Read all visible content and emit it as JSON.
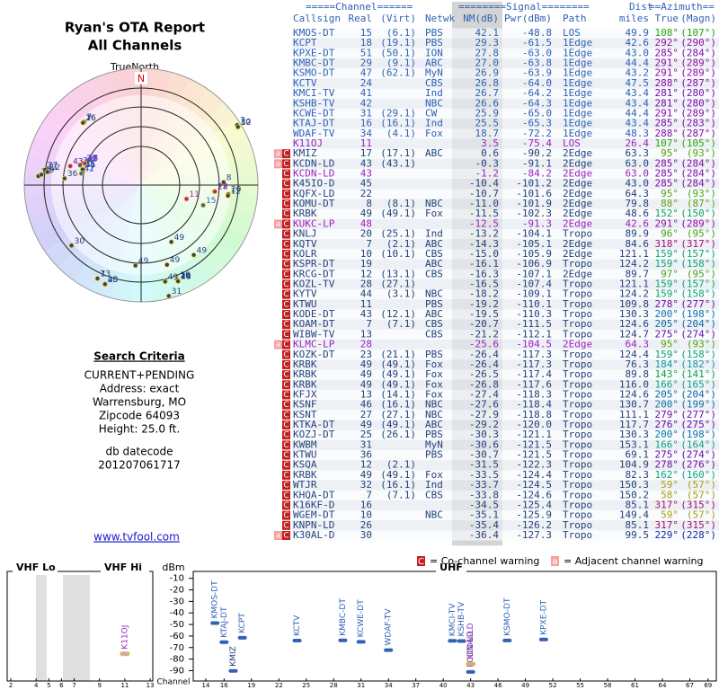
{
  "header": {
    "title": "Ryan's OTA Report",
    "subtitle": "All Channels"
  },
  "polar": {
    "north_label": "TrueNorth",
    "n": "N"
  },
  "table": {
    "group_headers": [
      "=====Channel======",
      "========Signal========",
      "Dist",
      "==Azimuth=="
    ],
    "columns": [
      "Callsign",
      "Real",
      "(Virt)",
      "Netwk",
      "NM(dB)",
      "Pwr(dBm)",
      "Path",
      "miles",
      "True",
      "(Magn)"
    ],
    "rows": [
      [
        "KMOS-DT",
        "15",
        "(6.1)",
        "PBS",
        "42.1",
        "-48.8",
        "LOS",
        "49.9",
        "108°",
        "(107°)"
      ],
      [
        "KCPT",
        "18",
        "(19.1)",
        "PBS",
        "29.3",
        "-61.5",
        "1Edge",
        "42.6",
        "292°",
        "(290°)"
      ],
      [
        "KPXE-DT",
        "51",
        "(50.1)",
        "ION",
        "27.8",
        "-63.0",
        "1Edge",
        "43.0",
        "285°",
        "(284°)"
      ],
      [
        "KMBC-DT",
        "29",
        "(9.1)",
        "ABC",
        "27.0",
        "-63.8",
        "1Edge",
        "44.4",
        "291°",
        "(289°)"
      ],
      [
        "KSMO-DT",
        "47",
        "(62.1)",
        "MyN",
        "26.9",
        "-63.9",
        "1Edge",
        "43.2",
        "291°",
        "(289°)"
      ],
      [
        "KCTV",
        "24",
        null,
        "CBS",
        "26.8",
        "-64.0",
        "1Edge",
        "47.5",
        "288°",
        "(287°)"
      ],
      [
        "KMCI-TV",
        "41",
        null,
        "Ind",
        "26.7",
        "-64.2",
        "1Edge",
        "43.4",
        "281°",
        "(280°)"
      ],
      [
        "KSHB-TV",
        "42",
        null,
        "NBC",
        "26.6",
        "-64.3",
        "1Edge",
        "43.4",
        "281°",
        "(280°)"
      ],
      [
        "KCWE-DT",
        "31",
        "(29.1)",
        "CW",
        "25.9",
        "-65.0",
        "1Edge",
        "44.4",
        "291°",
        "(289°)"
      ],
      [
        "KTAJ-DT",
        "16",
        "(16.1)",
        "Ind",
        "25.5",
        "-65.3",
        "1Edge",
        "43.4",
        "285°",
        "(283°)"
      ],
      [
        "WDAF-TV",
        "34",
        "(4.1)",
        "Fox",
        "18.7",
        "-72.2",
        "1Edge",
        "48.3",
        "288°",
        "(287°)"
      ],
      [
        "K11OJ",
        "11",
        null,
        null,
        "3.5",
        "-75.4",
        "LOS",
        "26.4",
        "107°",
        "(105°)"
      ],
      [
        "KMIZ",
        "17",
        "(17.1)",
        "ABC",
        "0.6",
        "-90.2",
        "2Edge",
        "63.3",
        "95°",
        "(93°)"
      ],
      [
        "KCDN-LD",
        "43",
        "(43.1)",
        null,
        "-0.3",
        "-91.1",
        "2Edge",
        "63.0",
        "285°",
        "(284°)"
      ],
      [
        "KCDN-LD",
        "43",
        null,
        null,
        "-1.2",
        "-84.2",
        "2Edge",
        "63.0",
        "285°",
        "(284°)"
      ],
      [
        "K45IO-D",
        "45",
        null,
        null,
        "-10.4",
        "-101.2",
        "2Edge",
        "43.0",
        "285°",
        "(284°)"
      ],
      [
        "KQFX-LD",
        "22",
        null,
        null,
        "-10.7",
        "-101.6",
        "2Edge",
        "64.3",
        "95°",
        "(93°)"
      ],
      [
        "KOMU-DT",
        "8",
        "(8.1)",
        "NBC",
        "-11.0",
        "-101.9",
        "2Edge",
        "79.8",
        "88°",
        "(87°)"
      ],
      [
        "KRBK",
        "49",
        "(49.1)",
        "Fox",
        "-11.5",
        "-102.3",
        "2Edge",
        "48.6",
        "152°",
        "(150°)"
      ],
      [
        "KUKC-LP",
        "48",
        null,
        null,
        "-12.5",
        "-91.3",
        "2Edge",
        "42.6",
        "291°",
        "(289°)"
      ],
      [
        "KNLJ",
        "20",
        "(25.1)",
        "Ind",
        "-13.2",
        "-104.1",
        "Tropo",
        "89.9",
        "96°",
        "(95°)"
      ],
      [
        "KQTV",
        "7",
        "(2.1)",
        "ABC",
        "-14.3",
        "-105.1",
        "2Edge",
        "84.6",
        "318°",
        "(317°)"
      ],
      [
        "KOLR",
        "10",
        "(10.1)",
        "CBS",
        "-15.0",
        "-105.9",
        "2Edge",
        "121.1",
        "159°",
        "(157°)"
      ],
      [
        "KSPR-DT",
        "19",
        null,
        "ABC",
        "-16.1",
        "-106.9",
        "Tropo",
        "124.2",
        "159°",
        "(158°)"
      ],
      [
        "KRCG-DT",
        "12",
        "(13.1)",
        "CBS",
        "-16.3",
        "-107.1",
        "2Edge",
        "89.7",
        "97°",
        "(95°)"
      ],
      [
        "KOZL-TV",
        "28",
        "(27.1)",
        null,
        "-16.5",
        "-107.4",
        "Tropo",
        "121.1",
        "159°",
        "(157°)"
      ],
      [
        "KYTV",
        "44",
        "(3.1)",
        "NBC",
        "-18.2",
        "-109.1",
        "Tropo",
        "124.2",
        "159°",
        "(158°)"
      ],
      [
        "KTWU",
        "11",
        null,
        "PBS",
        "-19.2",
        "-110.1",
        "Tropo",
        "109.8",
        "278°",
        "(277°)"
      ],
      [
        "KODE-DT",
        "43",
        "(12.1)",
        "ABC",
        "-19.5",
        "-110.3",
        "Tropo",
        "130.3",
        "200°",
        "(198°)"
      ],
      [
        "KOAM-DT",
        "7",
        "(7.1)",
        "CBS",
        "-20.7",
        "-111.5",
        "Tropo",
        "124.6",
        "205°",
        "(204°)"
      ],
      [
        "WIBW-TV",
        "13",
        null,
        "CBS",
        "-21.2",
        "-112.1",
        "Tropo",
        "124.7",
        "275°",
        "(274°)"
      ],
      [
        "KLMC-LP",
        "28",
        null,
        null,
        "-25.6",
        "-104.5",
        "2Edge",
        "64.3",
        "95°",
        "(93°)"
      ],
      [
        "KOZK-DT",
        "23",
        "(21.1)",
        "PBS",
        "-26.4",
        "-117.3",
        "Tropo",
        "124.4",
        "159°",
        "(158°)"
      ],
      [
        "KRBK",
        "49",
        "(49.1)",
        "Fox",
        "-26.4",
        "-117.3",
        "Tropo",
        "76.3",
        "184°",
        "(182°)"
      ],
      [
        "KRBK",
        "49",
        "(49.1)",
        "Fox",
        "-26.5",
        "-117.4",
        "Tropo",
        "89.8",
        "143°",
        "(141°)"
      ],
      [
        "KRBK",
        "49",
        "(49.1)",
        "Fox",
        "-26.8",
        "-117.6",
        "Tropo",
        "116.0",
        "166°",
        "(165°)"
      ],
      [
        "KFJX",
        "13",
        "(14.1)",
        "Fox",
        "-27.4",
        "-118.3",
        "Tropo",
        "124.6",
        "205°",
        "(204°)"
      ],
      [
        "KSNF",
        "46",
        "(16.1)",
        "NBC",
        "-27.6",
        "-118.4",
        "Tropo",
        "130.7",
        "200°",
        "(199°)"
      ],
      [
        "KSNT",
        "27",
        "(27.1)",
        "NBC",
        "-27.9",
        "-118.8",
        "Tropo",
        "111.1",
        "279°",
        "(277°)"
      ],
      [
        "KTKA-DT",
        "49",
        "(49.1)",
        "ABC",
        "-29.2",
        "-120.0",
        "Tropo",
        "117.7",
        "276°",
        "(275°)"
      ],
      [
        "KOZJ-DT",
        "25",
        "(26.1)",
        "PBS",
        "-30.3",
        "-121.1",
        "Tropo",
        "130.3",
        "200°",
        "(198°)"
      ],
      [
        "KWBM",
        "31",
        null,
        "MyN",
        "-30.6",
        "-121.5",
        "Tropo",
        "153.1",
        "166°",
        "(164°)"
      ],
      [
        "KTWU",
        "36",
        null,
        "PBS",
        "-30.7",
        "-121.5",
        "Tropo",
        "69.1",
        "275°",
        "(274°)"
      ],
      [
        "KSQA",
        "12",
        "(2.1)",
        null,
        "-31.5",
        "-122.3",
        "Tropo",
        "104.9",
        "278°",
        "(276°)"
      ],
      [
        "KRBK",
        "49",
        "(49.1)",
        "Fox",
        "-33.5",
        "-124.4",
        "Tropo",
        "82.3",
        "162°",
        "(160°)"
      ],
      [
        "WTJR",
        "32",
        "(16.1)",
        "Ind",
        "-33.7",
        "-124.5",
        "Tropo",
        "150.3",
        "59°",
        "(57°)"
      ],
      [
        "KHQA-DT",
        "7",
        "(7.1)",
        "CBS",
        "-33.8",
        "-124.6",
        "Tropo",
        "150.2",
        "58°",
        "(57°)"
      ],
      [
        "K16KF-D",
        "16",
        null,
        null,
        "-34.5",
        "-125.4",
        "Tropo",
        "85.1",
        "317°",
        "(315°)"
      ],
      [
        "WGEM-DT",
        "10",
        null,
        "NBC",
        "-35.1",
        "-125.9",
        "Tropo",
        "149.4",
        "59°",
        "(57°)"
      ],
      [
        "KNPN-LD",
        "26",
        null,
        null,
        "-35.4",
        "-126.2",
        "Tropo",
        "85.1",
        "317°",
        "(315°)"
      ],
      [
        "K30AL-D",
        "30",
        null,
        null,
        "-36.4",
        "-127.3",
        "Tropo",
        "99.5",
        "229°",
        "(228°)"
      ]
    ],
    "warnings": [
      [],
      [],
      [],
      [],
      [],
      [],
      [],
      [],
      [],
      [],
      [],
      [],
      [
        "a",
        "C"
      ],
      [
        "a",
        "C"
      ],
      [
        "C"
      ],
      [
        "C"
      ],
      [
        "C"
      ],
      [
        "C"
      ],
      [
        "C"
      ],
      [
        "a",
        "C"
      ],
      [
        "C"
      ],
      [
        "C"
      ],
      [
        "C"
      ],
      [
        "C"
      ],
      [
        "C"
      ],
      [
        "C"
      ],
      [
        "C"
      ],
      [
        "C"
      ],
      [
        "C"
      ],
      [
        "C"
      ],
      [
        "C"
      ],
      [
        "a",
        "C"
      ],
      [
        "C"
      ],
      [
        "C"
      ],
      [
        "C"
      ],
      [
        "C"
      ],
      [
        "C"
      ],
      [
        "C"
      ],
      [
        "C"
      ],
      [
        "C"
      ],
      [
        "C"
      ],
      [
        "C"
      ],
      [
        "C"
      ],
      [
        "C"
      ],
      [
        "C"
      ],
      [
        "C"
      ],
      [
        "C"
      ],
      [
        "C"
      ],
      [
        "C"
      ],
      [
        "C"
      ],
      [
        "a",
        "C"
      ]
    ],
    "row_colors": [
      "#2f62b5",
      "#2f62b5",
      "#2f62b5",
      "#2f62b5",
      "#2f62b5",
      "#2f62b5",
      "#2f62b5",
      "#2f62b5",
      "#2f62b5",
      "#2f62b5",
      "#2f62b5",
      "#a020c0",
      "#24427a",
      "#24427a",
      "#a020c0",
      "#24427a",
      "#24427a",
      "#24427a",
      "#24427a",
      "#a020c0",
      "#24427a",
      "#24427a",
      "#24427a",
      "#24427a",
      "#24427a",
      "#24427a",
      "#24427a",
      "#24427a",
      "#24427a",
      "#24427a",
      "#24427a",
      "#a020c0",
      "#24427a",
      "#24427a",
      "#24427a",
      "#24427a",
      "#24427a",
      "#24427a",
      "#24427a",
      "#24427a",
      "#24427a",
      "#24427a",
      "#24427a",
      "#24427a",
      "#24427a",
      "#24427a",
      "#24427a",
      "#24427a",
      "#24427a",
      "#24427a",
      "#24427a"
    ]
  },
  "criteria": {
    "title": "Search Criteria",
    "lines": [
      "CURRENT+PENDING",
      "Address: exact",
      "Warrensburg, MO",
      "Zipcode 64093",
      "Height: 25.0 ft."
    ],
    "datecode_label": "db datecode",
    "datecode": "201207061717",
    "link": "www.tvfool.com"
  },
  "legend": {
    "co_icon": "C",
    "co_text": "= Co-channel warning",
    "adj_icon": "a",
    "adj_text": "= Adjacent channel warning"
  },
  "spectrum": {
    "vhf_lo": "VHF Lo",
    "vhf_hi": "VHF Hi",
    "uhf": "UHF",
    "y_label": "dBm",
    "x_label": "Channel",
    "ylim": [
      -4,
      -99
    ],
    "yticks": [
      -10,
      -20,
      -30,
      -40,
      -50,
      -60,
      -70,
      -80,
      -90
    ],
    "vhf_ticks": [
      2,
      4,
      5,
      6,
      7,
      9,
      11,
      13
    ],
    "uhf_ticks": [
      14,
      16,
      19,
      22,
      25,
      28,
      31,
      34,
      37,
      40,
      43,
      46,
      49,
      52,
      55,
      58,
      61,
      64,
      67,
      69
    ]
  }
}
